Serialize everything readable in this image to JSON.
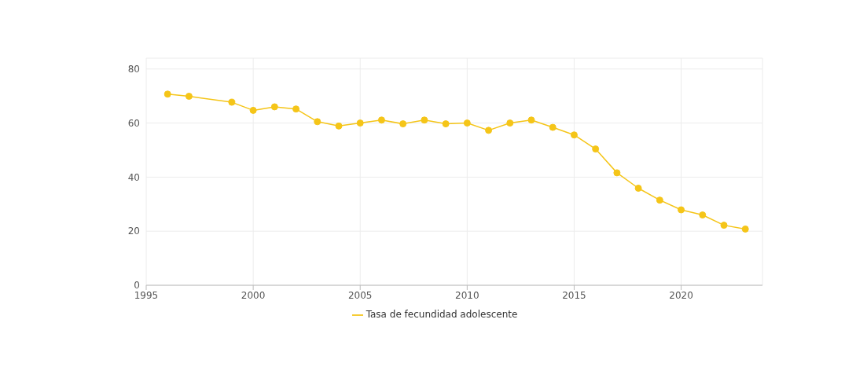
{
  "chart_data": {
    "type": "line",
    "x": [
      1996,
      1997,
      1999,
      2000,
      2001,
      2002,
      2003,
      2004,
      2005,
      2006,
      2007,
      2008,
      2009,
      2010,
      2011,
      2012,
      2013,
      2014,
      2015,
      2016,
      2017,
      2018,
      2019,
      2020,
      2021,
      2022,
      2023
    ],
    "series": [
      {
        "name": "Tasa de fecundidad adolescente",
        "color": "#f5c518",
        "values": [
          70.7,
          69.9,
          67.7,
          64.7,
          66.0,
          65.2,
          60.5,
          58.9,
          60.0,
          61.1,
          59.7,
          61.1,
          59.7,
          60.0,
          57.3,
          60.0,
          61.1,
          58.4,
          55.6,
          50.4,
          41.6,
          35.9,
          31.5,
          27.9,
          26.0,
          22.2,
          20.8
        ]
      }
    ],
    "xlim": [
      1995,
      2023.8
    ],
    "xticks": [
      1995,
      2000,
      2005,
      2010,
      2015,
      2020
    ],
    "ylim": [
      0,
      84
    ],
    "yticks": [
      0,
      20,
      40,
      60,
      80
    ],
    "grid": true,
    "legend": "bottom",
    "marker": "circle",
    "line_style": "solid"
  }
}
